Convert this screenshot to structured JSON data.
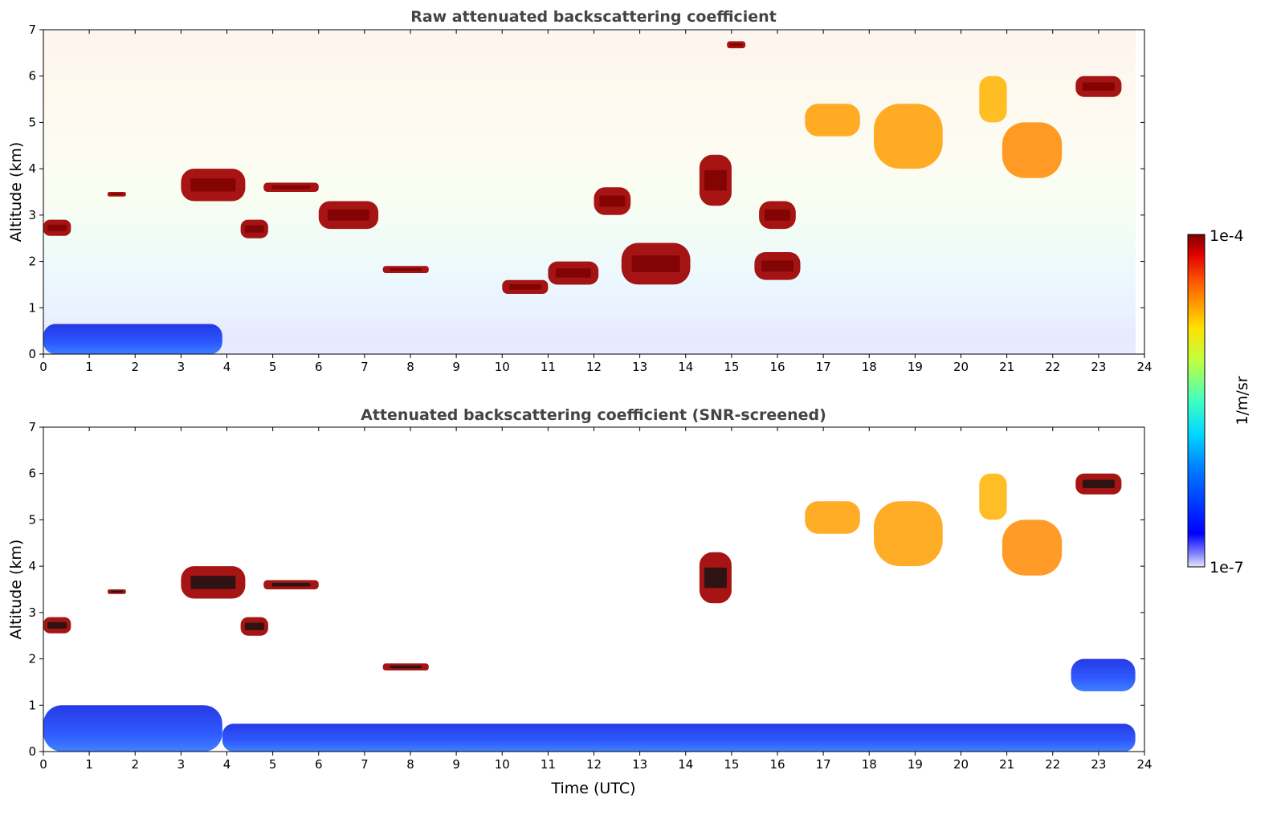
{
  "chart_data": [
    {
      "type": "heatmap",
      "title": "Raw attenuated backscattering coefficient",
      "xlabel": "",
      "ylabel": "Altitude (km)",
      "xlim": [
        0,
        24
      ],
      "ylim": [
        0,
        7
      ],
      "x_ticks": [
        "0",
        "1",
        "2",
        "3",
        "4",
        "5",
        "6",
        "7",
        "8",
        "9",
        "10",
        "11",
        "12",
        "13",
        "14",
        "15",
        "16",
        "17",
        "18",
        "19",
        "20",
        "21",
        "22",
        "23",
        "24"
      ],
      "y_ticks": [
        "0",
        "1",
        "2",
        "3",
        "4",
        "5",
        "6",
        "7"
      ],
      "data_end_time": 23.8,
      "background": "noisy signal: dark blue near surface (0-0.8 km), cyan/green 1-3 km, yellow/orange/red above 4 km",
      "features": [
        {
          "x0": 0.0,
          "x1": 3.9,
          "y0": 0.0,
          "y1": 0.65,
          "level": 0.35
        },
        {
          "x0": 0.0,
          "x1": 0.6,
          "y0": 2.55,
          "y1": 2.9,
          "level": 0.97
        },
        {
          "x0": 1.4,
          "x1": 1.8,
          "y0": 3.4,
          "y1": 3.5,
          "level": 0.97
        },
        {
          "x0": 3.0,
          "x1": 4.4,
          "y0": 3.3,
          "y1": 4.0,
          "level": 0.97
        },
        {
          "x0": 4.3,
          "x1": 4.9,
          "y0": 2.5,
          "y1": 2.9,
          "level": 0.97
        },
        {
          "x0": 4.8,
          "x1": 6.0,
          "y0": 3.5,
          "y1": 3.7,
          "level": 0.97
        },
        {
          "x0": 6.0,
          "x1": 7.3,
          "y0": 2.7,
          "y1": 3.3,
          "level": 0.97
        },
        {
          "x0": 7.4,
          "x1": 8.4,
          "y0": 1.75,
          "y1": 1.9,
          "level": 0.97
        },
        {
          "x0": 10.0,
          "x1": 11.0,
          "y0": 1.3,
          "y1": 1.6,
          "level": 0.97
        },
        {
          "x0": 11.0,
          "x1": 12.1,
          "y0": 1.5,
          "y1": 2.0,
          "level": 0.97
        },
        {
          "x0": 12.0,
          "x1": 12.8,
          "y0": 3.0,
          "y1": 3.6,
          "level": 0.97
        },
        {
          "x0": 12.6,
          "x1": 14.1,
          "y0": 1.5,
          "y1": 2.4,
          "level": 0.97
        },
        {
          "x0": 14.3,
          "x1": 15.0,
          "y0": 3.2,
          "y1": 4.3,
          "level": 0.97
        },
        {
          "x0": 14.9,
          "x1": 15.3,
          "y0": 6.6,
          "y1": 6.75,
          "level": 0.97
        },
        {
          "x0": 15.6,
          "x1": 16.4,
          "y0": 2.7,
          "y1": 3.3,
          "level": 0.97
        },
        {
          "x0": 15.5,
          "x1": 16.5,
          "y0": 1.6,
          "y1": 2.2,
          "level": 0.97
        },
        {
          "x0": 16.6,
          "x1": 17.8,
          "y0": 4.7,
          "y1": 5.4,
          "level": 0.72
        },
        {
          "x0": 18.1,
          "x1": 19.6,
          "y0": 4.0,
          "y1": 5.4,
          "level": 0.72
        },
        {
          "x0": 20.4,
          "x1": 21.0,
          "y0": 5.0,
          "y1": 6.0,
          "level": 0.7
        },
        {
          "x0": 20.9,
          "x1": 22.2,
          "y0": 3.8,
          "y1": 5.0,
          "level": 0.74
        },
        {
          "x0": 22.5,
          "x1": 23.5,
          "y0": 5.55,
          "y1": 6.0,
          "level": 0.97
        }
      ]
    },
    {
      "type": "heatmap",
      "title": "Attenuated backscattering coefficient (SNR-screened)",
      "xlabel": "Time (UTC)",
      "ylabel": "Altitude (km)",
      "xlim": [
        0,
        24
      ],
      "ylim": [
        0,
        7
      ],
      "x_ticks": [
        "0",
        "1",
        "2",
        "3",
        "4",
        "5",
        "6",
        "7",
        "8",
        "9",
        "10",
        "11",
        "12",
        "13",
        "14",
        "15",
        "16",
        "17",
        "18",
        "19",
        "20",
        "21",
        "22",
        "23",
        "24"
      ],
      "y_ticks": [
        "0",
        "1",
        "2",
        "3",
        "4",
        "5",
        "6",
        "7"
      ],
      "data_end_time": 23.8,
      "background": "white (screened out) except boundary layer 0-1 km (blue) and cloud features",
      "features": [
        {
          "x0": 0.0,
          "x1": 3.9,
          "y0": 0.0,
          "y1": 1.0,
          "level": 0.25
        },
        {
          "x0": 3.9,
          "x1": 23.8,
          "y0": 0.0,
          "y1": 0.6,
          "level": 0.2
        },
        {
          "x0": 0.0,
          "x1": 0.6,
          "y0": 2.55,
          "y1": 2.9,
          "level": 0.97
        },
        {
          "x0": 1.4,
          "x1": 1.8,
          "y0": 3.4,
          "y1": 3.5,
          "level": 0.97
        },
        {
          "x0": 3.0,
          "x1": 4.4,
          "y0": 3.3,
          "y1": 4.0,
          "level": 0.97
        },
        {
          "x0": 4.3,
          "x1": 4.9,
          "y0": 2.5,
          "y1": 2.9,
          "level": 0.97
        },
        {
          "x0": 4.8,
          "x1": 6.0,
          "y0": 3.5,
          "y1": 3.7,
          "level": 0.97
        },
        {
          "x0": 7.4,
          "x1": 8.4,
          "y0": 1.75,
          "y1": 1.9,
          "level": 0.97
        },
        {
          "x0": 14.3,
          "x1": 15.0,
          "y0": 3.2,
          "y1": 4.3,
          "level": 0.97
        },
        {
          "x0": 16.6,
          "x1": 17.8,
          "y0": 4.7,
          "y1": 5.4,
          "level": 0.72
        },
        {
          "x0": 18.1,
          "x1": 19.6,
          "y0": 4.0,
          "y1": 5.4,
          "level": 0.72
        },
        {
          "x0": 20.4,
          "x1": 21.0,
          "y0": 5.0,
          "y1": 6.0,
          "level": 0.7
        },
        {
          "x0": 20.9,
          "x1": 22.2,
          "y0": 3.8,
          "y1": 5.0,
          "level": 0.74
        },
        {
          "x0": 22.5,
          "x1": 23.5,
          "y0": 5.55,
          "y1": 6.0,
          "level": 0.97
        },
        {
          "x0": 22.4,
          "x1": 23.8,
          "y0": 1.3,
          "y1": 2.0,
          "level": 0.32
        }
      ]
    }
  ],
  "colorbar": {
    "label": "1/m/sr",
    "max_label": "1e-4",
    "min_label": "1e-7",
    "colormap": "jet",
    "scale": "log"
  },
  "colors": {
    "title": "#444444",
    "boundary_layer": "#0022ee",
    "cloud_core": "#8b0000",
    "screened": "#ffffff"
  }
}
